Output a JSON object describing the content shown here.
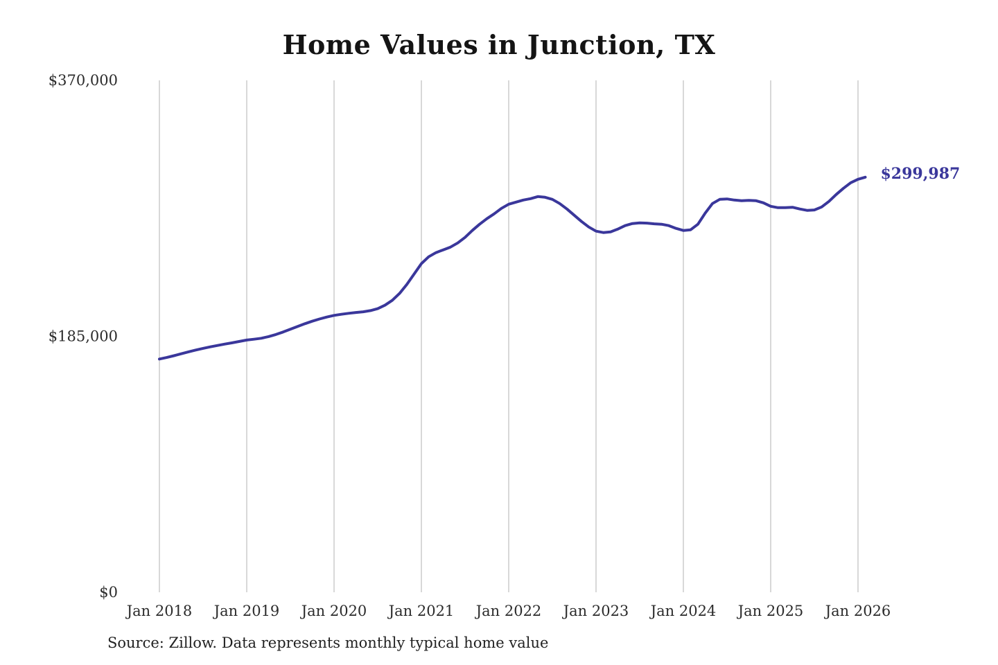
{
  "title": "Home Values in Junction, TX",
  "source_note": "Source: Zillow. Data represents monthly typical home value",
  "line_color": "#3a379b",
  "gridline_color": "#cccccc",
  "chart_data": {
    "type": "line",
    "title": "Home Values in Junction, TX",
    "x_start": "2018-01",
    "x_end": "2026-02",
    "x_step": "monthly",
    "x_tick_labels": [
      "Jan 2018",
      "Jan 2019",
      "Jan 2020",
      "Jan 2021",
      "Jan 2022",
      "Jan 2023",
      "Jan 2024",
      "Jan 2025",
      "Jan 2026"
    ],
    "y_ticks": [
      {
        "value": 0,
        "label": "$0"
      },
      {
        "value": 185000,
        "label": "$185,000"
      },
      {
        "value": 370000,
        "label": "$370,000"
      }
    ],
    "ylim": [
      0,
      370000
    ],
    "grid": "vertical-only",
    "legend": "none",
    "end_value": 299987,
    "end_value_label": "$299,987",
    "series": [
      {
        "name": "Typical home value",
        "values": [
          168600,
          169700,
          171000,
          172400,
          173800,
          175100,
          176300,
          177400,
          178400,
          179400,
          180300,
          181300,
          182300,
          182900,
          183600,
          184800,
          186300,
          188100,
          190100,
          192100,
          194100,
          195900,
          197500,
          198900,
          200100,
          200900,
          201600,
          202200,
          202700,
          203600,
          205000,
          207500,
          211000,
          216000,
          222500,
          230000,
          237500,
          242500,
          245500,
          247500,
          249500,
          252500,
          256500,
          261500,
          266000,
          270000,
          273500,
          277500,
          280500,
          282000,
          283500,
          284500,
          286000,
          285500,
          284000,
          281000,
          277000,
          272500,
          268000,
          264000,
          261000,
          260000,
          260500,
          262500,
          265000,
          266500,
          267000,
          266800,
          266300,
          266000,
          265000,
          263000,
          261500,
          262000,
          266000,
          274000,
          281000,
          284000,
          284300,
          283500,
          283000,
          283300,
          283000,
          281500,
          279000,
          278000,
          278000,
          278300,
          277000,
          276000,
          276300,
          278500,
          282500,
          287500,
          292000,
          296000,
          298500,
          299987
        ]
      }
    ],
    "source": "Source: Zillow. Data represents monthly typical home value"
  }
}
